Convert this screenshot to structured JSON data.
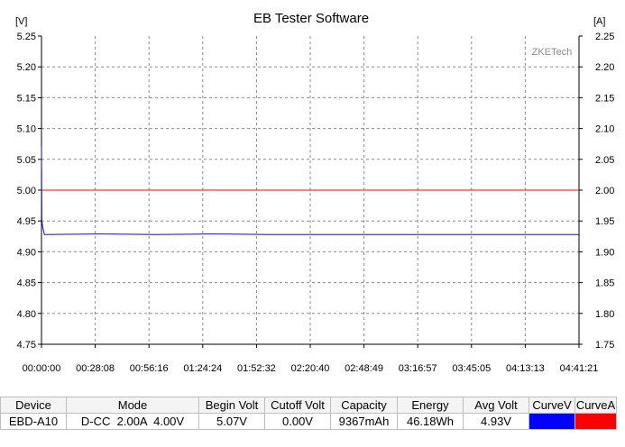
{
  "window": {
    "title": "EB Tester Software"
  },
  "chart_data": {
    "type": "line",
    "title": "EB Tester Software",
    "watermark": "ZKETech",
    "y_left_unit": "[V]",
    "y_right_unit": "[A]",
    "y_left_lim": [
      4.75,
      5.25
    ],
    "y_right_lim": [
      1.75,
      2.25
    ],
    "y_left_ticks": [
      "5.25",
      "5.20",
      "5.15",
      "5.10",
      "5.05",
      "5.00",
      "4.95",
      "4.90",
      "4.85",
      "4.80",
      "4.75"
    ],
    "y_right_ticks": [
      "2.25",
      "2.20",
      "2.15",
      "2.10",
      "2.05",
      "2.00",
      "1.95",
      "1.90",
      "1.85",
      "1.80",
      "1.75"
    ],
    "x_ticks": [
      "00:00:00",
      "00:28:08",
      "00:56:16",
      "01:24:24",
      "01:52:32",
      "02:20:40",
      "02:48:49",
      "03:16:57",
      "03:45:05",
      "04:13:13",
      "04:41:21"
    ],
    "grid": true,
    "series": [
      {
        "name": "CurveV",
        "axis": "left",
        "color": "#1010c8",
        "points": [
          [
            "00:00:00",
            5.07
          ],
          [
            "00:00:10",
            4.95
          ],
          [
            "00:00:40",
            4.94
          ],
          [
            "00:01:30",
            4.928
          ],
          [
            "00:30:00",
            4.929
          ],
          [
            "01:00:00",
            4.928
          ],
          [
            "01:30:00",
            4.929
          ],
          [
            "02:00:00",
            4.928
          ],
          [
            "02:30:00",
            4.928
          ],
          [
            "03:00:00",
            4.928
          ],
          [
            "03:30:00",
            4.928
          ],
          [
            "04:00:00",
            4.928
          ],
          [
            "04:41:21",
            4.928
          ]
        ]
      },
      {
        "name": "CurveA",
        "axis": "right",
        "color": "#ff0000",
        "points": [
          [
            "00:00:00",
            2.0
          ],
          [
            "04:41:21",
            2.0
          ]
        ]
      }
    ]
  },
  "table": {
    "headers": [
      "Device",
      "Mode",
      "Begin Volt",
      "Cutoff Volt",
      "Capacity",
      "Energy",
      "Avg Volt",
      "CurveV",
      "CurveA"
    ],
    "row": [
      "EBD-A10",
      "D-CC  2.00A  4.00V",
      "5.07V",
      "0.00V",
      "9367mAh",
      "46.18Wh",
      "4.93V"
    ],
    "curve_colors": {
      "curveV": "#0000ff",
      "curveA": "#ff0000"
    }
  }
}
